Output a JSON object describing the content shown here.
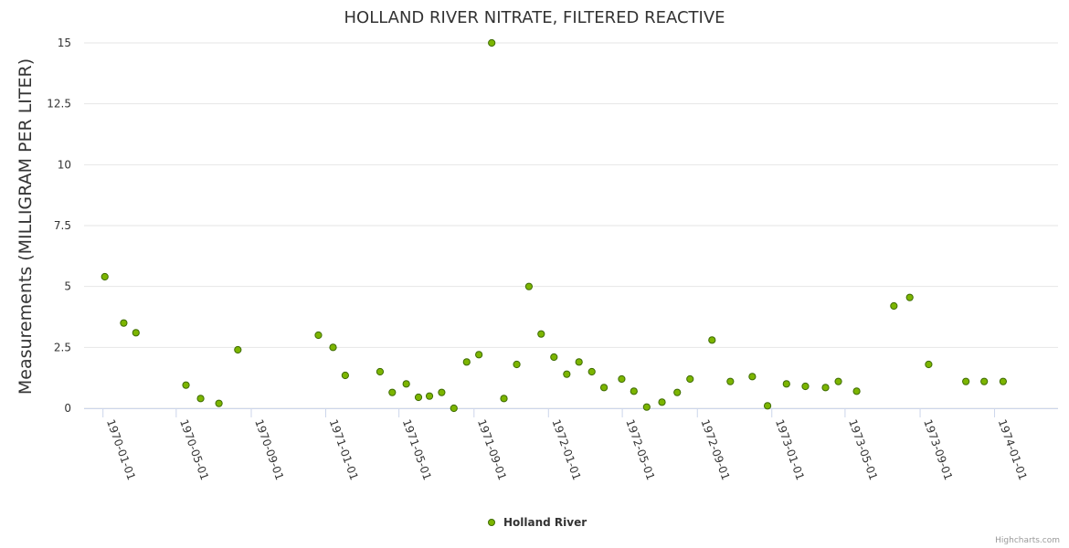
{
  "credits": "Highcharts.com",
  "chart_data": {
    "type": "scatter",
    "title": "HOLLAND RIVER NITRATE, FILTERED REACTIVE",
    "xlabel": "",
    "ylabel": "Measurements (MILLIGRAM PER LITER)",
    "ylim": [
      0,
      15
    ],
    "xlim": [
      "1969-12-01",
      "1974-04-15"
    ],
    "yticks": [
      "0",
      "2.5",
      "5",
      "7.5",
      "10",
      "12.5",
      "15"
    ],
    "xticks": [
      "1970-01-01",
      "1970-05-01",
      "1970-09-01",
      "1971-01-01",
      "1971-05-01",
      "1971-09-01",
      "1972-01-01",
      "1972-05-01",
      "1972-09-01",
      "1973-01-01",
      "1973-05-01",
      "1973-09-01",
      "1974-01-01"
    ],
    "grid": true,
    "legend": "bottom-center",
    "marker_color": "#7cb500",
    "marker_edge_color": "#3d6b00",
    "series": [
      {
        "name": "Holland River",
        "points": [
          [
            "1970-01-04",
            5.4
          ],
          [
            "1970-02-04",
            3.5
          ],
          [
            "1970-02-24",
            3.1
          ],
          [
            "1970-05-17",
            0.95
          ],
          [
            "1970-06-10",
            0.4
          ],
          [
            "1970-07-10",
            0.2
          ],
          [
            "1970-08-10",
            2.4
          ],
          [
            "1970-12-20",
            3.0
          ],
          [
            "1971-01-13",
            2.5
          ],
          [
            "1971-02-02",
            1.35
          ],
          [
            "1971-03-31",
            1.5
          ],
          [
            "1971-04-20",
            0.65
          ],
          [
            "1971-05-13",
            1.0
          ],
          [
            "1971-06-02",
            0.45
          ],
          [
            "1971-06-20",
            0.5
          ],
          [
            "1971-07-10",
            0.65
          ],
          [
            "1971-07-30",
            0.0
          ],
          [
            "1971-08-20",
            1.9
          ],
          [
            "1971-09-09",
            2.2
          ],
          [
            "1971-09-30",
            15.0
          ],
          [
            "1971-10-20",
            0.4
          ],
          [
            "1971-11-10",
            1.8
          ],
          [
            "1971-11-30",
            5.0
          ],
          [
            "1971-12-20",
            3.05
          ],
          [
            "1972-01-10",
            2.1
          ],
          [
            "1972-01-31",
            1.4
          ],
          [
            "1972-02-20",
            1.9
          ],
          [
            "1972-03-12",
            1.5
          ],
          [
            "1972-04-01",
            0.85
          ],
          [
            "1972-04-30",
            1.2
          ],
          [
            "1972-05-20",
            0.7
          ],
          [
            "1972-06-10",
            0.05
          ],
          [
            "1972-07-05",
            0.25
          ],
          [
            "1972-07-30",
            0.65
          ],
          [
            "1972-08-20",
            1.2
          ],
          [
            "1972-09-25",
            2.8
          ],
          [
            "1972-10-25",
            1.1
          ],
          [
            "1972-11-30",
            1.3
          ],
          [
            "1972-12-25",
            0.1
          ],
          [
            "1973-01-25",
            1.0
          ],
          [
            "1973-02-25",
            0.9
          ],
          [
            "1973-03-30",
            0.85
          ],
          [
            "1973-04-20",
            1.1
          ],
          [
            "1973-05-20",
            0.7
          ],
          [
            "1973-07-20",
            4.2
          ],
          [
            "1973-08-15",
            4.55
          ],
          [
            "1973-09-15",
            1.8
          ],
          [
            "1973-11-15",
            1.1
          ],
          [
            "1973-12-15",
            1.1
          ],
          [
            "1974-01-15",
            1.1
          ]
        ]
      }
    ]
  }
}
